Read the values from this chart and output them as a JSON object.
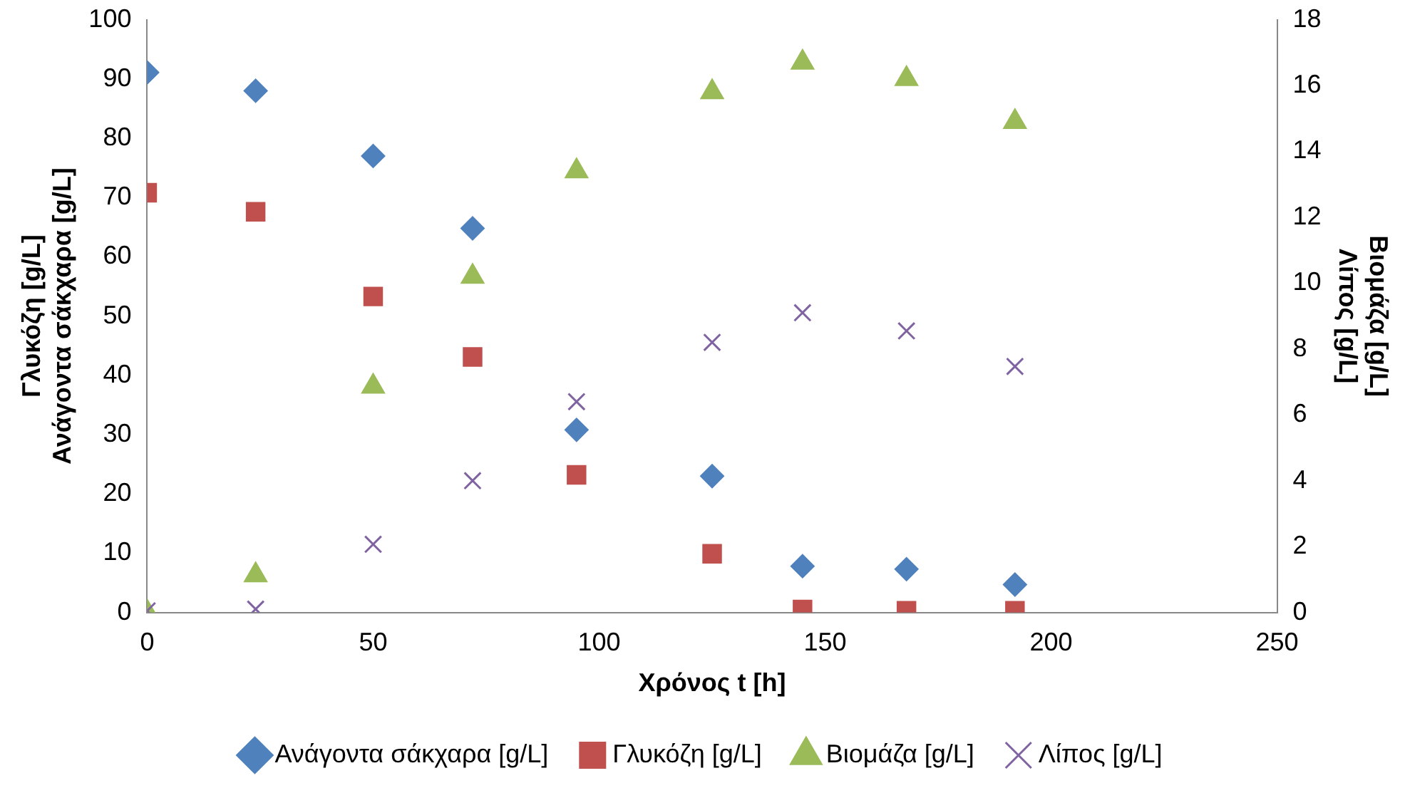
{
  "chart_data": {
    "type": "scatter",
    "xlabel": "Χρόνος t [h]",
    "ylabel": "Γλυκόζη [g/L]\nΑνάγοντα σάκχαρα [g/L]",
    "y2label": "Βιομάζα [g/L]\nΛίπος [g/L]",
    "x": [
      0,
      24,
      50,
      72,
      95,
      125,
      145,
      168,
      192
    ],
    "xlim": [
      0,
      250
    ],
    "xticks": [
      0,
      50,
      100,
      150,
      200,
      250
    ],
    "ylim": [
      0,
      100
    ],
    "yticks": [
      0,
      10,
      20,
      30,
      40,
      50,
      60,
      70,
      80,
      90,
      100
    ],
    "y2lim": [
      0,
      18
    ],
    "y2ticks": [
      0,
      2,
      4,
      6,
      8,
      10,
      12,
      14,
      16,
      18
    ],
    "grid": false,
    "legend": "bottom",
    "series": [
      {
        "name": "Ανάγοντα σάκχαρα [g/L]",
        "color": "#4f81bd",
        "marker": "diamond",
        "values": [
          91.1,
          88.0,
          77.0,
          64.8,
          30.8,
          23.0,
          7.8,
          7.3,
          4.7
        ]
      },
      {
        "name": "Γλυκόζη [g/L]",
        "color": "#c0504d",
        "marker": "square",
        "values": [
          70.8,
          67.6,
          53.3,
          43.1,
          23.2,
          9.9,
          0.5,
          0.3,
          0.3
        ]
      },
      {
        "name": "Βιομάζα [g/L]",
        "color": "#9bbb59",
        "marker": "triangle",
        "axis": "y2",
        "values": [
          0,
          1.13,
          6.86,
          10.2,
          13.4,
          15.8,
          16.7,
          16.2,
          14.9
        ]
      },
      {
        "name": "Λίπος [g/L]",
        "color": "#8064a2",
        "marker": "cross",
        "axis": "y2",
        "values": [
          0.05,
          0.1,
          2.07,
          4.0,
          6.4,
          8.2,
          9.1,
          8.55,
          7.47
        ]
      }
    ]
  }
}
